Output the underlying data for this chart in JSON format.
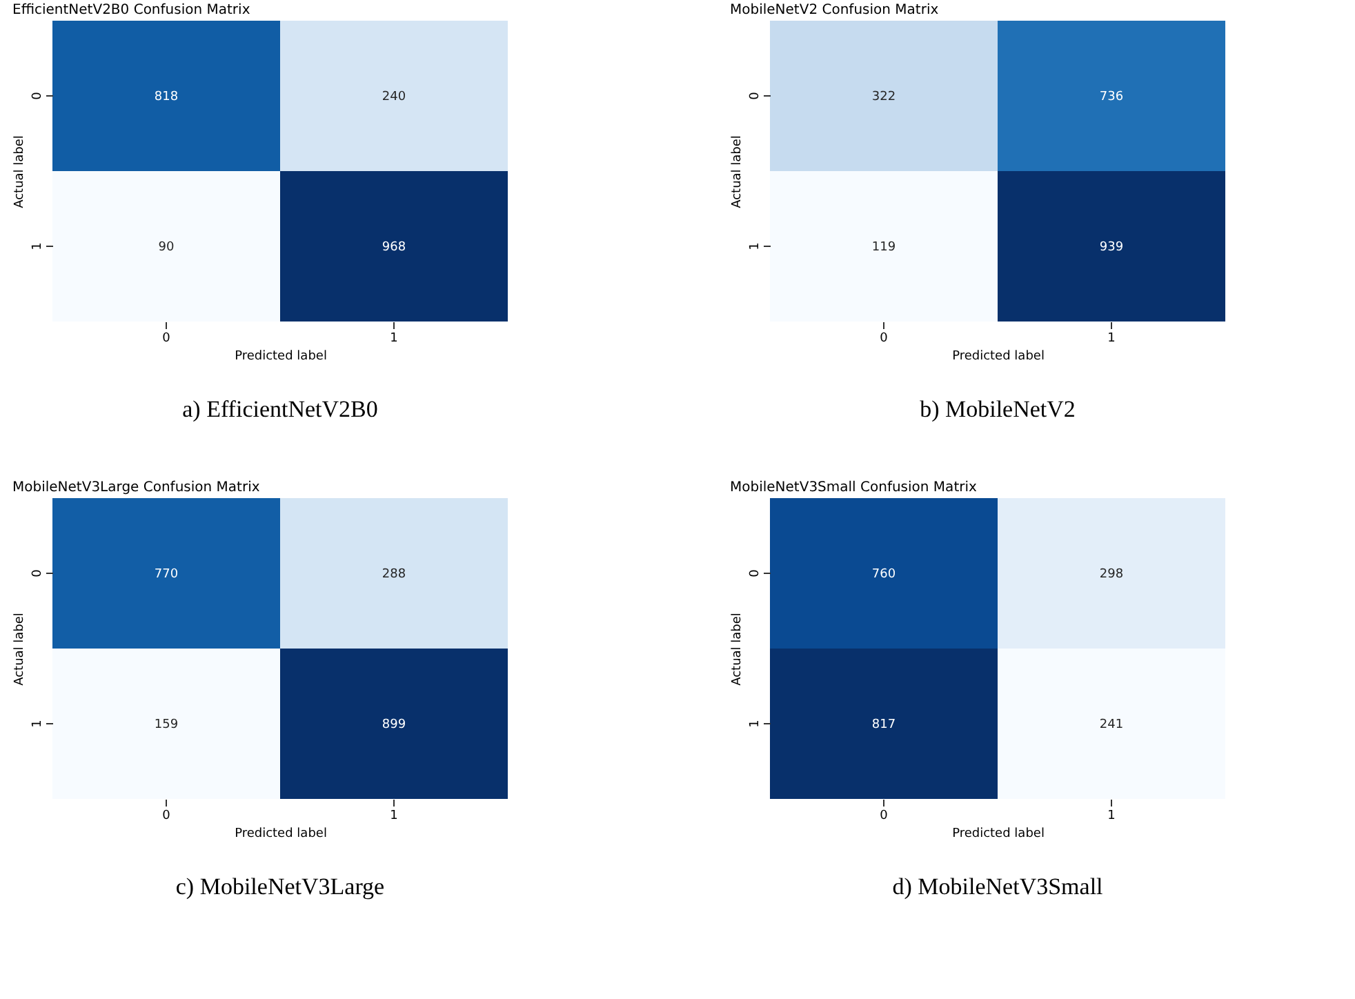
{
  "chart_data": [
    {
      "type": "heatmap",
      "title": "EfficientNetV2B0 Confusion Matrix",
      "xlabel": "Predicted label",
      "ylabel": "Actual label",
      "categories": [
        "0",
        "1"
      ],
      "y_categories": [
        "0",
        "1"
      ],
      "cells": [
        [
          818,
          240
        ],
        [
          90,
          968
        ]
      ],
      "data_labels": true,
      "annotations": [
        "a) EfficientNetV2B0"
      ]
    },
    {
      "type": "heatmap",
      "title": "MobileNetV2 Confusion Matrix",
      "xlabel": "Predicted label",
      "ylabel": "Actual label",
      "categories": [
        "0",
        "1"
      ],
      "y_categories": [
        "0",
        "1"
      ],
      "cells": [
        [
          322,
          736
        ],
        [
          119,
          939
        ]
      ],
      "data_labels": true,
      "annotations": [
        "b) MobileNetV2"
      ]
    },
    {
      "type": "heatmap",
      "title": "MobileNetV3Large Confusion Matrix",
      "xlabel": "Predicted label",
      "ylabel": "Actual label",
      "categories": [
        "0",
        "1"
      ],
      "y_categories": [
        "0",
        "1"
      ],
      "cells": [
        [
          770,
          288
        ],
        [
          159,
          899
        ]
      ],
      "data_labels": true,
      "annotations": [
        "c) MobileNetV3Large"
      ]
    },
    {
      "type": "heatmap",
      "title": "MobileNetV3Small Confusion Matrix",
      "xlabel": "Predicted label",
      "ylabel": "Actual label",
      "categories": [
        "0",
        "1"
      ],
      "y_categories": [
        "0",
        "1"
      ],
      "cells": [
        [
          760,
          298
        ],
        [
          817,
          241
        ]
      ],
      "data_labels": true,
      "annotations": [
        "d) MobileNetV3Small"
      ]
    }
  ]
}
